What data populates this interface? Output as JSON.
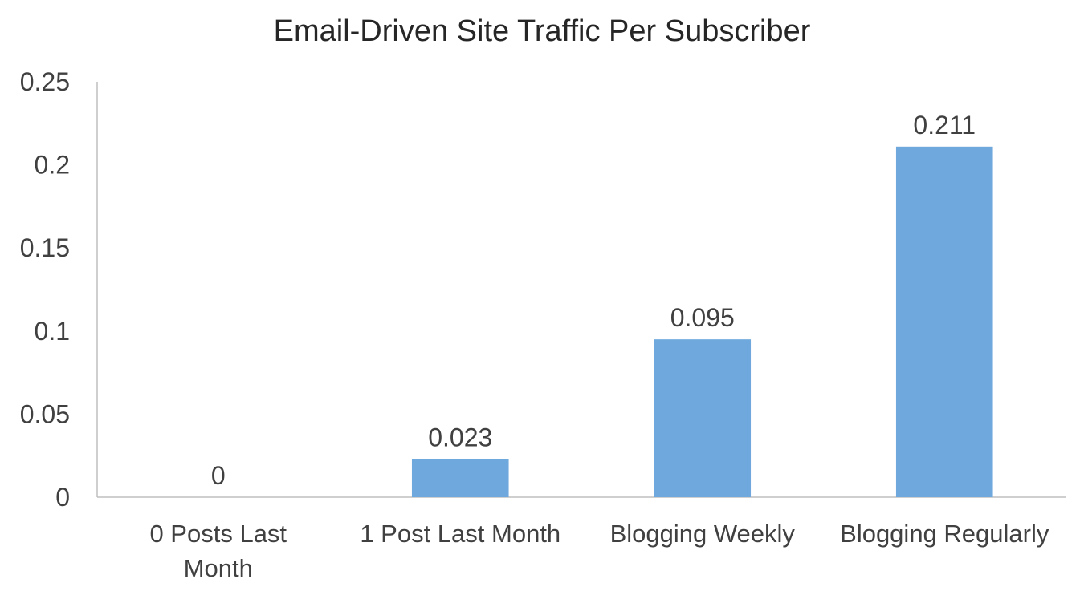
{
  "chart_data": {
    "type": "bar",
    "title": "Email-Driven Site Traffic Per Subscriber",
    "categories": [
      "0 Posts Last Month",
      "1 Post Last Month",
      "Blogging Weekly",
      "Blogging Regularly"
    ],
    "category_label_lines": [
      [
        "0 Posts Last",
        "Month"
      ],
      [
        "1 Post Last Month"
      ],
      [
        "Blogging Weekly"
      ],
      [
        "Blogging Regularly"
      ]
    ],
    "values": [
      0,
      0.023,
      0.095,
      0.211
    ],
    "data_labels": [
      "0",
      "0.023",
      "0.095",
      "0.211"
    ],
    "xlabel": "",
    "ylabel": "",
    "ylim": [
      0,
      0.25
    ],
    "yticks": [
      0,
      0.05,
      0.1,
      0.15,
      0.2,
      0.25
    ],
    "ytick_labels": [
      "0",
      "0.05",
      "0.1",
      "0.15",
      "0.2",
      "0.25"
    ],
    "grid": false,
    "legend": "none",
    "bar_color": "#6FA8DC",
    "axis_color": "#BFBFBF",
    "text_color": "#404040"
  }
}
